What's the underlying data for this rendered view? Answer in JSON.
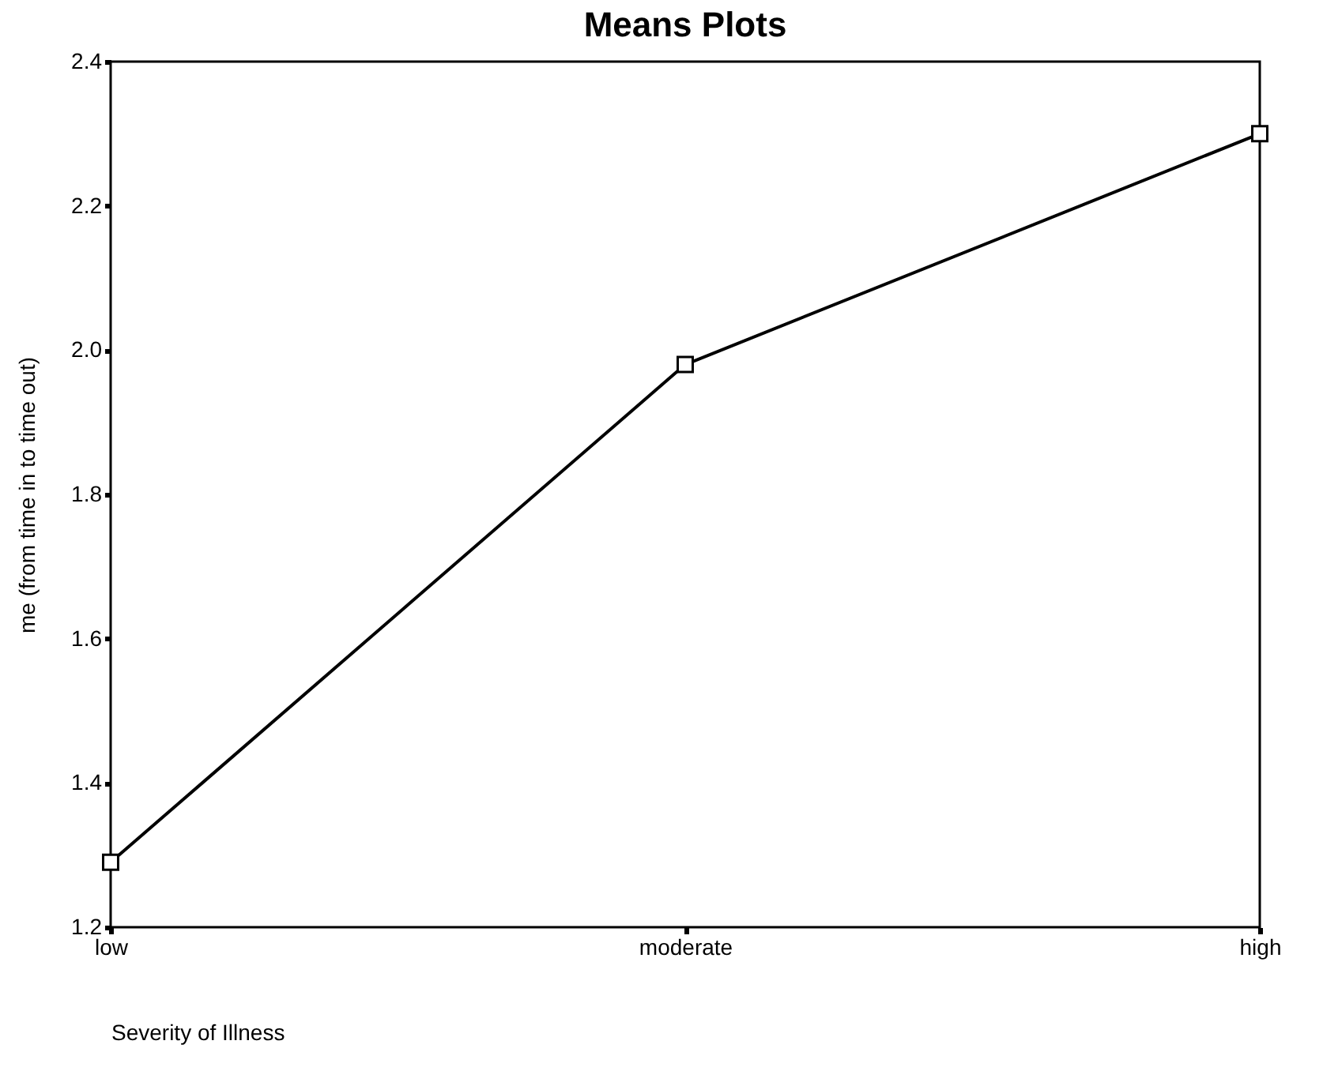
{
  "chart_data": {
    "type": "line",
    "title": "Means Plots",
    "xlabel": "Severity of Illness",
    "ylabel": "me (from time in to time out)",
    "categories": [
      "low",
      "moderate",
      "high"
    ],
    "series": [
      {
        "color": "#000000",
        "values": [
          1.29,
          1.98,
          2.3
        ]
      }
    ],
    "ylim": [
      1.2,
      2.4
    ],
    "yticks": [
      1.2,
      1.4,
      1.6,
      1.8,
      {
        "value": 2,
        "label": "2.0"
      },
      2.2,
      2.4
    ],
    "grid": false,
    "legend": false,
    "marker": "square",
    "line_style": "solid"
  }
}
